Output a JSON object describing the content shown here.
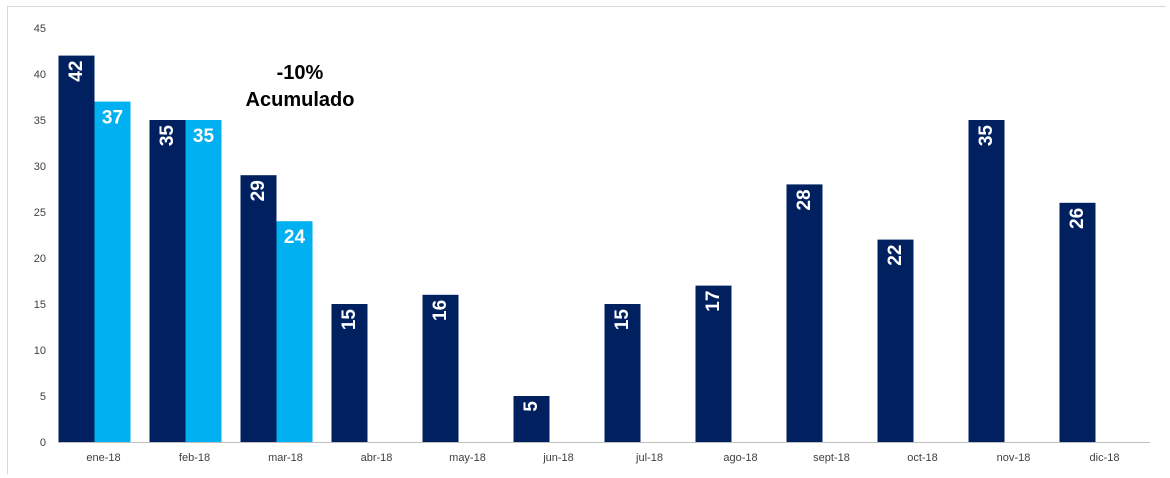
{
  "chart_data": {
    "type": "bar",
    "categories": [
      "ene-18",
      "feb-18",
      "mar-18",
      "abr-18",
      "may-18",
      "jun-18",
      "jul-18",
      "ago-18",
      "sept-18",
      "oct-18",
      "nov-18",
      "dic-18"
    ],
    "series": [
      {
        "values": [
          42,
          35,
          29,
          15,
          16,
          5,
          15,
          17,
          28,
          22,
          35,
          26
        ],
        "color": "#002060"
      },
      {
        "values": [
          37,
          35,
          24,
          null,
          null,
          null,
          null,
          null,
          null,
          null,
          null,
          null
        ],
        "color": "#00b0f0"
      }
    ],
    "ylim": [
      0,
      45
    ],
    "yticks": [
      0,
      5,
      10,
      15,
      20,
      25,
      30,
      35,
      40,
      45
    ],
    "xlabel": "",
    "ylabel": "",
    "grid": false,
    "annotation": {
      "line1": "-10%",
      "line2": "Acumulado"
    }
  }
}
